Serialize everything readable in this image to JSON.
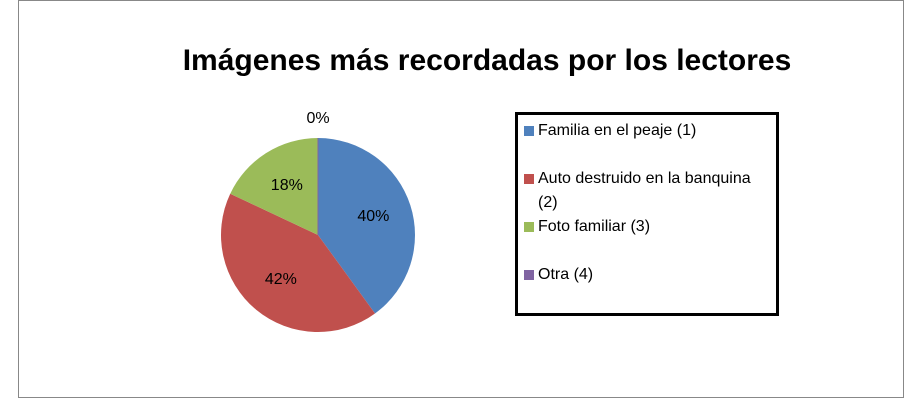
{
  "chart_data": {
    "type": "pie",
    "title": "Imágenes más recordadas por los lectores",
    "categories": [
      "Familia en el peaje (1)",
      "Auto destruido en la banquina (2)",
      "Foto familiar (3)",
      "Otra (4)"
    ],
    "values": [
      40,
      42,
      18,
      0
    ],
    "value_labels": [
      "40%",
      "42%",
      "18%",
      "0%"
    ],
    "colors": [
      "#4f81bd",
      "#c0504d",
      "#9bbb59",
      "#8064a2"
    ],
    "legend": "right"
  }
}
